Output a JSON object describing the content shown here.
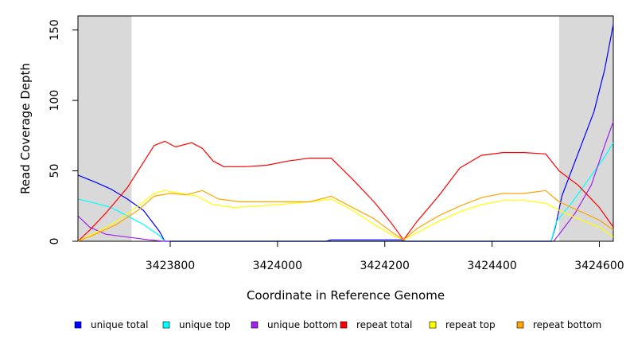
{
  "chart_data": {
    "type": "line",
    "title": "",
    "xlabel": "Coordinate in Reference Genome",
    "ylabel": "Read Coverage Depth",
    "xlim": [
      3423628,
      3424626
    ],
    "ylim": [
      0,
      160
    ],
    "x_ticks": [
      3423800,
      3424000,
      3424200,
      3424400,
      3424600
    ],
    "y_ticks": [
      0,
      50,
      100,
      150
    ],
    "grid": false,
    "legend_position": "bottom",
    "shaded_regions": [
      {
        "x": [
          3423628,
          3423728
        ],
        "color": "#d9d9d9"
      },
      {
        "x": [
          3424525,
          3424626
        ],
        "color": "#d9d9d9"
      }
    ],
    "series": [
      {
        "name": "unique total",
        "color": "#0000ff",
        "x": [
          3423628,
          3423660,
          3423690,
          3423720,
          3423750,
          3423780,
          3423790,
          3424090,
          3424100,
          3424230,
          3424240,
          3424510,
          3424518,
          3424530,
          3424560,
          3424590,
          3424610,
          3424626
        ],
        "y": [
          47,
          42,
          37,
          30,
          22,
          7,
          0,
          0,
          1,
          1,
          0,
          0,
          10,
          32,
          62,
          92,
          122,
          154
        ]
      },
      {
        "name": "unique top",
        "color": "#00ffff",
        "x": [
          3423628,
          3423660,
          3423690,
          3423720,
          3423750,
          3423780,
          3423790,
          3424510,
          3424520,
          3424550,
          3424580,
          3424610,
          3424626
        ],
        "y": [
          30,
          27,
          24,
          18,
          12,
          4,
          0,
          0,
          14,
          28,
          44,
          60,
          70
        ]
      },
      {
        "name": "unique bottom",
        "color": "#a020f0",
        "x": [
          3423628,
          3423650,
          3423680,
          3423720,
          3423760,
          3423790,
          3424515,
          3424525,
          3424555,
          3424585,
          3424610,
          3424626
        ],
        "y": [
          18,
          10,
          5,
          3,
          1,
          0,
          0,
          5,
          20,
          40,
          68,
          85
        ]
      },
      {
        "name": "repeat total",
        "color": "#ff0000",
        "x": [
          3423628,
          3423650,
          3423680,
          3423720,
          3423750,
          3423770,
          3423790,
          3423810,
          3423840,
          3423860,
          3423880,
          3423900,
          3423940,
          3423980,
          3424020,
          3424060,
          3424100,
          3424140,
          3424180,
          3424210,
          3424235,
          3424260,
          3424300,
          3424340,
          3424380,
          3424420,
          3424460,
          3424500,
          3424525,
          3424560,
          3424600,
          3424626
        ],
        "y": [
          0,
          8,
          20,
          38,
          56,
          68,
          71,
          67,
          70,
          66,
          57,
          53,
          53,
          54,
          57,
          59,
          59,
          44,
          28,
          14,
          1,
          14,
          32,
          52,
          61,
          63,
          63,
          62,
          50,
          40,
          24,
          10
        ]
      },
      {
        "name": "repeat top",
        "color": "#ffff00",
        "x": [
          3423628,
          3423660,
          3423700,
          3423740,
          3423770,
          3423790,
          3423820,
          3423850,
          3423880,
          3423920,
          3423960,
          3424000,
          3424060,
          3424100,
          3424140,
          3424180,
          3424215,
          3424235,
          3424260,
          3424300,
          3424340,
          3424380,
          3424420,
          3424460,
          3424500,
          3424525,
          3424560,
          3424600,
          3424626
        ],
        "y": [
          0,
          6,
          14,
          25,
          34,
          36,
          34,
          32,
          26,
          24,
          25,
          26,
          28,
          30,
          22,
          12,
          4,
          1,
          6,
          14,
          21,
          26,
          29,
          29,
          27,
          22,
          16,
          10,
          3
        ]
      },
      {
        "name": "repeat bottom",
        "color": "#ffa500",
        "x": [
          3423628,
          3423660,
          3423700,
          3423740,
          3423770,
          3423800,
          3423830,
          3423860,
          3423890,
          3423930,
          3423970,
          3424010,
          3424060,
          3424100,
          3424140,
          3424180,
          3424215,
          3424235,
          3424260,
          3424300,
          3424340,
          3424380,
          3424420,
          3424460,
          3424500,
          3424525,
          3424560,
          3424600,
          3424626
        ],
        "y": [
          0,
          5,
          12,
          22,
          32,
          34,
          33,
          36,
          30,
          28,
          28,
          28,
          28,
          32,
          24,
          16,
          6,
          1,
          9,
          18,
          25,
          31,
          34,
          34,
          36,
          28,
          22,
          15,
          8
        ]
      }
    ]
  }
}
